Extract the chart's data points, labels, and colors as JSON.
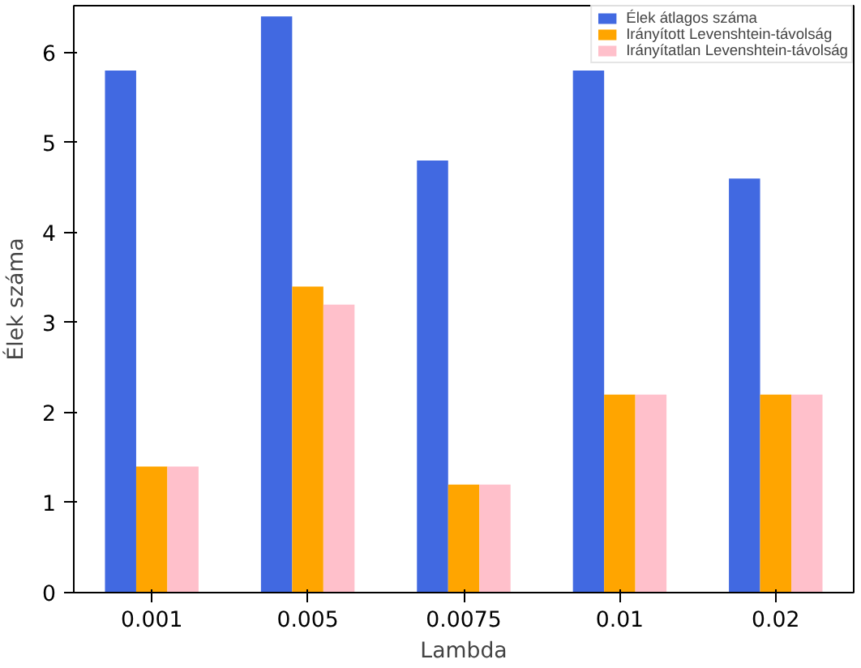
{
  "chart_data": {
    "type": "bar",
    "xlabel": "Lambda",
    "ylabel": "Élek száma",
    "categories": [
      "0.001",
      "0.005",
      "0.0075",
      "0.01",
      "0.02"
    ],
    "series": [
      {
        "name": "Élek átlagos száma",
        "color": "#4169e1",
        "values": [
          5.8,
          6.4,
          4.8,
          5.8,
          4.6
        ]
      },
      {
        "name": "Irányított Levenshtein-távolság",
        "color": "#ffa500",
        "values": [
          1.4,
          3.4,
          1.2,
          2.2,
          2.2
        ]
      },
      {
        "name": "Irányítatlan Levenshtein-távolság",
        "color": "#ffc0cb",
        "values": [
          1.4,
          3.2,
          1.2,
          2.2,
          2.2
        ]
      }
    ],
    "ylim": [
      0,
      6.52
    ],
    "yticks": [
      0,
      1,
      2,
      3,
      4,
      5,
      6
    ],
    "grid": false,
    "legend": "top right"
  }
}
